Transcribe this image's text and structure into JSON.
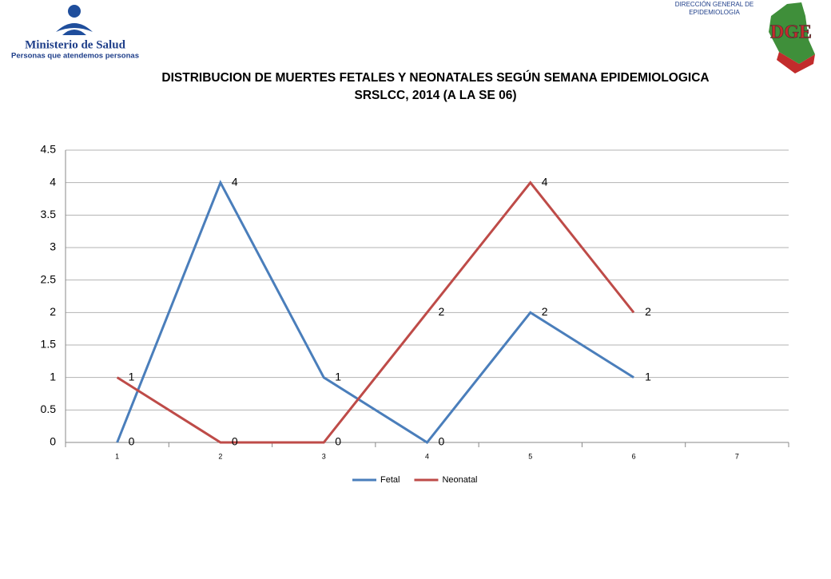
{
  "header": {
    "ministry": "Ministerio de Salud",
    "motto": "Personas que atendemos personas",
    "direction_line1": "DIRECCIÓN GENERAL DE",
    "direction_line2": "EPIDEMIOLOGIA",
    "logo_letters": "DGE"
  },
  "chart_data": {
    "type": "line",
    "title": "DISTRIBUCION DE MUERTES FETALES Y NEONATALES SEGÚN SEMANA EPIDEMIOLOGICA",
    "subtitle": "SRSLCC, 2014 (A LA SE 06)",
    "categories": [
      "1",
      "2",
      "3",
      "4",
      "5",
      "6",
      "7"
    ],
    "series": [
      {
        "name": "Fetal",
        "color": "#4a7ebb",
        "values": [
          0,
          4,
          1,
          0,
          2,
          1,
          null
        ]
      },
      {
        "name": "Neonatal",
        "color": "#be4b48",
        "values": [
          1,
          0,
          0,
          2,
          4,
          2,
          null
        ]
      }
    ],
    "ylim": [
      0,
      4.5
    ],
    "yticks": [
      0,
      0.5,
      1,
      1.5,
      2,
      2.5,
      3,
      3.5,
      4,
      4.5
    ],
    "grid": true,
    "legend": "bottom",
    "data_labels": true
  }
}
